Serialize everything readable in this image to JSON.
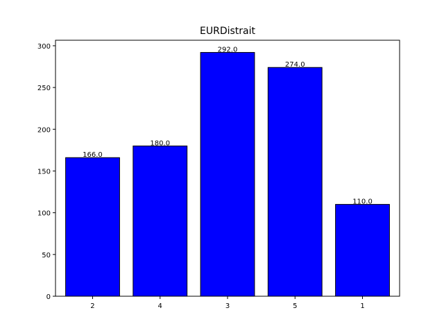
{
  "chart_data": {
    "type": "bar",
    "title": "EURDistrait",
    "xlabel": "",
    "ylabel": "",
    "categories": [
      "2",
      "4",
      "3",
      "5",
      "1"
    ],
    "values": [
      166.0,
      180.0,
      292.0,
      274.0,
      110.0
    ],
    "data_labels": [
      "166.0",
      "180.0",
      "292.0",
      "274.0",
      "110.0"
    ],
    "ylim": [
      0,
      306.6
    ],
    "yticks": [
      0,
      50,
      100,
      150,
      200,
      250,
      300
    ],
    "ytick_labels": [
      "0",
      "50",
      "100",
      "150",
      "200",
      "250",
      "300"
    ],
    "bar_color": "#0000ff",
    "bar_edge_color": "#000000",
    "grid": false,
    "legend": "none"
  }
}
